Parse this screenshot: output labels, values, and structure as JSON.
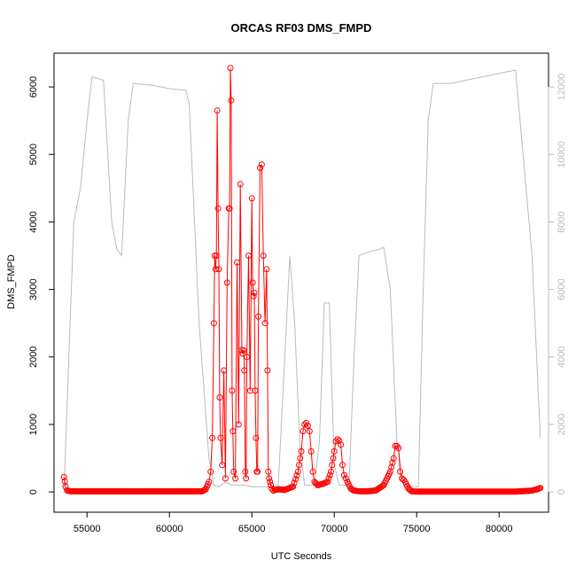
{
  "chart_data": {
    "type": "line",
    "title": "ORCAS RF03 DMS_FMPD",
    "xlabel": "UTC Seconds",
    "ylabel": "DMS_FMPD",
    "xlim": [
      53000,
      83000
    ],
    "ylim": [
      -300,
      6500
    ],
    "y2lim": [
      -600,
      13000
    ],
    "x_ticks": [
      55000,
      60000,
      65000,
      70000,
      75000,
      80000
    ],
    "y_ticks": [
      0,
      1000,
      2000,
      3000,
      4000,
      5000,
      6000
    ],
    "y2_ticks": [
      0,
      2000,
      4000,
      6000,
      8000,
      10000,
      12000
    ],
    "grid": false,
    "colors": {
      "primary": "#ff0000",
      "secondary": "#bbbbbb",
      "frame": "#000000"
    },
    "series": [
      {
        "axis": "left",
        "style": "line+points",
        "x": [
          53600,
          53650,
          53700,
          53800,
          54000,
          55000,
          56000,
          57000,
          58000,
          59000,
          60000,
          61000,
          62000,
          62200,
          62400,
          62500,
          62600,
          62700,
          62750,
          62800,
          62850,
          62900,
          62950,
          63000,
          63050,
          63100,
          63200,
          63300,
          63400,
          63500,
          63600,
          63650,
          63700,
          63750,
          63800,
          63850,
          63900,
          64000,
          64100,
          64200,
          64300,
          64400,
          64450,
          64500,
          64550,
          64600,
          64650,
          64700,
          64800,
          64900,
          65000,
          65050,
          65100,
          65150,
          65200,
          65250,
          65300,
          65350,
          65400,
          65500,
          65600,
          65700,
          65800,
          65900,
          65950,
          66000,
          66050,
          66100,
          66150,
          66200,
          66300,
          66400,
          66600,
          67000,
          67500,
          67800,
          68000,
          68100,
          68200,
          68300,
          68400,
          68500,
          68600,
          68700,
          68800,
          69000,
          69300,
          69600,
          69800,
          70000,
          70100,
          70200,
          70300,
          70400,
          70500,
          70600,
          70700,
          70800,
          71000,
          71200,
          71500,
          72000,
          72500,
          73000,
          73400,
          73600,
          73700,
          73800,
          73900,
          74000,
          74100,
          74200,
          74300,
          74500,
          74700,
          75000,
          76000,
          77000,
          78000,
          79000,
          80000,
          81000,
          82000,
          82300,
          82500
        ],
        "y": [
          220,
          160,
          80,
          20,
          10,
          8,
          8,
          8,
          8,
          8,
          8,
          8,
          10,
          40,
          150,
          300,
          800,
          2500,
          3500,
          3300,
          3500,
          5650,
          4200,
          3300,
          1400,
          800,
          400,
          1800,
          200,
          3100,
          4200,
          4200,
          6280,
          5800,
          1500,
          900,
          300,
          200,
          3400,
          1000,
          4560,
          2100,
          2050,
          2100,
          1800,
          300,
          200,
          2000,
          3500,
          1500,
          4350,
          3100,
          2900,
          2950,
          1500,
          800,
          300,
          300,
          2600,
          4800,
          4850,
          3500,
          2500,
          3300,
          1800,
          300,
          200,
          150,
          100,
          50,
          20,
          30,
          40,
          30,
          80,
          300,
          600,
          900,
          1000,
          1020,
          980,
          900,
          600,
          300,
          150,
          100,
          120,
          150,
          300,
          600,
          750,
          780,
          760,
          700,
          400,
          250,
          200,
          150,
          50,
          20,
          10,
          10,
          20,
          100,
          300,
          500,
          680,
          680,
          650,
          300,
          200,
          180,
          150,
          50,
          10,
          5,
          5,
          5,
          5,
          5,
          5,
          5,
          20,
          40,
          60
        ]
      },
      {
        "axis": "right",
        "style": "line",
        "x": [
          53600,
          53900,
          54200,
          54600,
          55000,
          55300,
          56000,
          56500,
          56800,
          57100,
          57500,
          57800,
          59000,
          60000,
          61000,
          61200,
          61800,
          62400,
          62700,
          63000,
          63400,
          63800,
          64200,
          64600,
          65000,
          65400,
          65800,
          66200,
          66600,
          67000,
          67300,
          67600,
          67900,
          68200,
          68500,
          68800,
          69100,
          69400,
          69700,
          70000,
          70300,
          70600,
          70900,
          71200,
          71500,
          72000,
          72800,
          73000,
          73400,
          73800,
          74200,
          74500,
          74800,
          75100,
          75400,
          75700,
          76000,
          77000,
          78000,
          79000,
          80000,
          81000,
          82000,
          82500
        ],
        "y": [
          0,
          4000,
          8000,
          9000,
          11000,
          12300,
          12200,
          8000,
          7200,
          7000,
          11000,
          12100,
          12050,
          11950,
          11900,
          11500,
          5000,
          1000,
          200,
          150,
          300,
          200,
          200,
          200,
          150,
          150,
          150,
          150,
          200,
          4000,
          7000,
          5000,
          1500,
          200,
          200,
          200,
          1500,
          5600,
          5600,
          800,
          200,
          200,
          200,
          4000,
          7000,
          7100,
          7200,
          7250,
          6000,
          1500,
          300,
          200,
          150,
          150,
          6000,
          11000,
          12100,
          12100,
          12200,
          12300,
          12400,
          12500,
          7000,
          1600
        ]
      }
    ]
  }
}
